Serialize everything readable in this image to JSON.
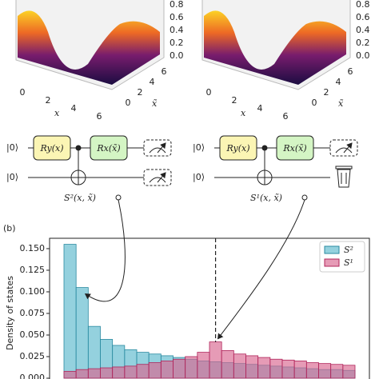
{
  "panel_a": {
    "plots": [
      {
        "zticks": [
          "0.8",
          "0.6",
          "0.4",
          "0.2",
          "0.0"
        ],
        "xticks": [
          "0",
          "2",
          "4",
          "6"
        ],
        "yticks": [
          "6",
          "4",
          "2",
          "0"
        ],
        "xlabel": "x",
        "ylabel": "x̃"
      },
      {
        "zticks": [
          "0.8",
          "0.6",
          "0.4",
          "0.2",
          "0.0"
        ],
        "xticks": [
          "0",
          "2",
          "4",
          "6"
        ],
        "yticks": [
          "6",
          "4",
          "2",
          "0"
        ],
        "xlabel": "x",
        "ylabel": "x̃"
      }
    ],
    "circuits": [
      {
        "inputs": [
          "|0⟩",
          "|0⟩"
        ],
        "gates": [
          "Ry(x)",
          "Rx(x̃)"
        ],
        "label": "S²(x, x̃)"
      },
      {
        "inputs": [
          "|0⟩",
          "|0⟩"
        ],
        "gates": [
          "Ry(x)",
          "Rx(x̃)"
        ],
        "label": "S¹(x, x̃)"
      }
    ]
  },
  "chart_data": {
    "type": "bar",
    "panel_label": "(b)",
    "ylabel": "Density of states",
    "categories": [
      null,
      null,
      null,
      null,
      null,
      null,
      null,
      null,
      null,
      null,
      null,
      null,
      null,
      null,
      null,
      null,
      null,
      null,
      null,
      null,
      null,
      null,
      null,
      null
    ],
    "series": [
      {
        "name": "S²",
        "color": "#5bb8cc",
        "values": [
          0.155,
          0.105,
          0.06,
          0.045,
          0.038,
          0.033,
          0.03,
          0.028,
          0.026,
          0.024,
          0.022,
          0.02,
          0.019,
          0.018,
          0.017,
          0.016,
          0.015,
          0.014,
          0.013,
          0.012,
          0.011,
          0.01,
          0.01,
          0.009
        ]
      },
      {
        "name": "S¹",
        "color": "#d9668f",
        "values": [
          0.008,
          0.01,
          0.011,
          0.012,
          0.013,
          0.014,
          0.016,
          0.018,
          0.02,
          0.022,
          0.025,
          0.03,
          0.042,
          0.032,
          0.028,
          0.026,
          0.024,
          0.022,
          0.021,
          0.02,
          0.018,
          0.017,
          0.016,
          0.015
        ]
      }
    ],
    "ylim": [
      0,
      0.162
    ],
    "yticks": [
      {
        "value": 0,
        "label": "0.000"
      },
      0.025,
      {
        "value": 0.05,
        "label": "0.050"
      },
      0.075,
      {
        "value": 0.1,
        "label": "0.100"
      },
      0.125,
      {
        "value": 0.15,
        "label": "0.150"
      }
    ],
    "legend": "upper right"
  }
}
